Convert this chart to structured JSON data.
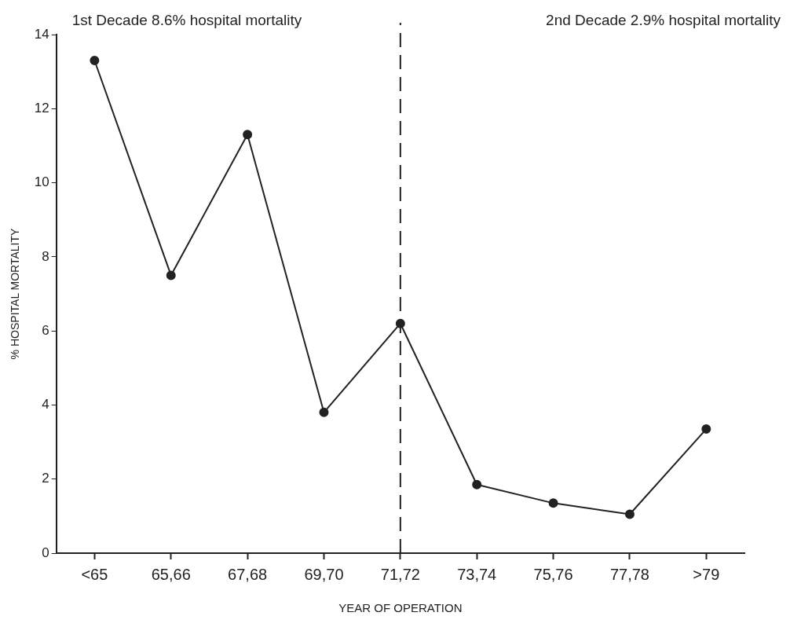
{
  "chart_data": {
    "type": "line",
    "xlabel": "YEAR OF OPERATION",
    "ylabel": "% HOSPITAL MORTALITY",
    "annotations": [
      "1st Decade 8.6% hospital mortality",
      "2nd Decade 2.9% hospital mortality"
    ],
    "categories": [
      "<65",
      "65,66",
      "67,68",
      "69,70",
      "71,72",
      "73,74",
      "75,76",
      "77,78",
      ">79"
    ],
    "series": [
      {
        "color": "#222222",
        "values": [
          13.3,
          7.5,
          11.3,
          3.8,
          6.2,
          1.85,
          1.35,
          1.05,
          3.35
        ]
      }
    ],
    "ylim": [
      0,
      14
    ],
    "yticks": [
      0,
      2,
      4,
      6,
      8,
      10,
      12,
      14
    ],
    "grid": false,
    "legend": false,
    "marker": "circle",
    "line_style": "solid",
    "ref_lines": [
      {
        "axis": "x",
        "value": "71,72",
        "line_style": "dashed",
        "color": "#222222"
      }
    ]
  }
}
